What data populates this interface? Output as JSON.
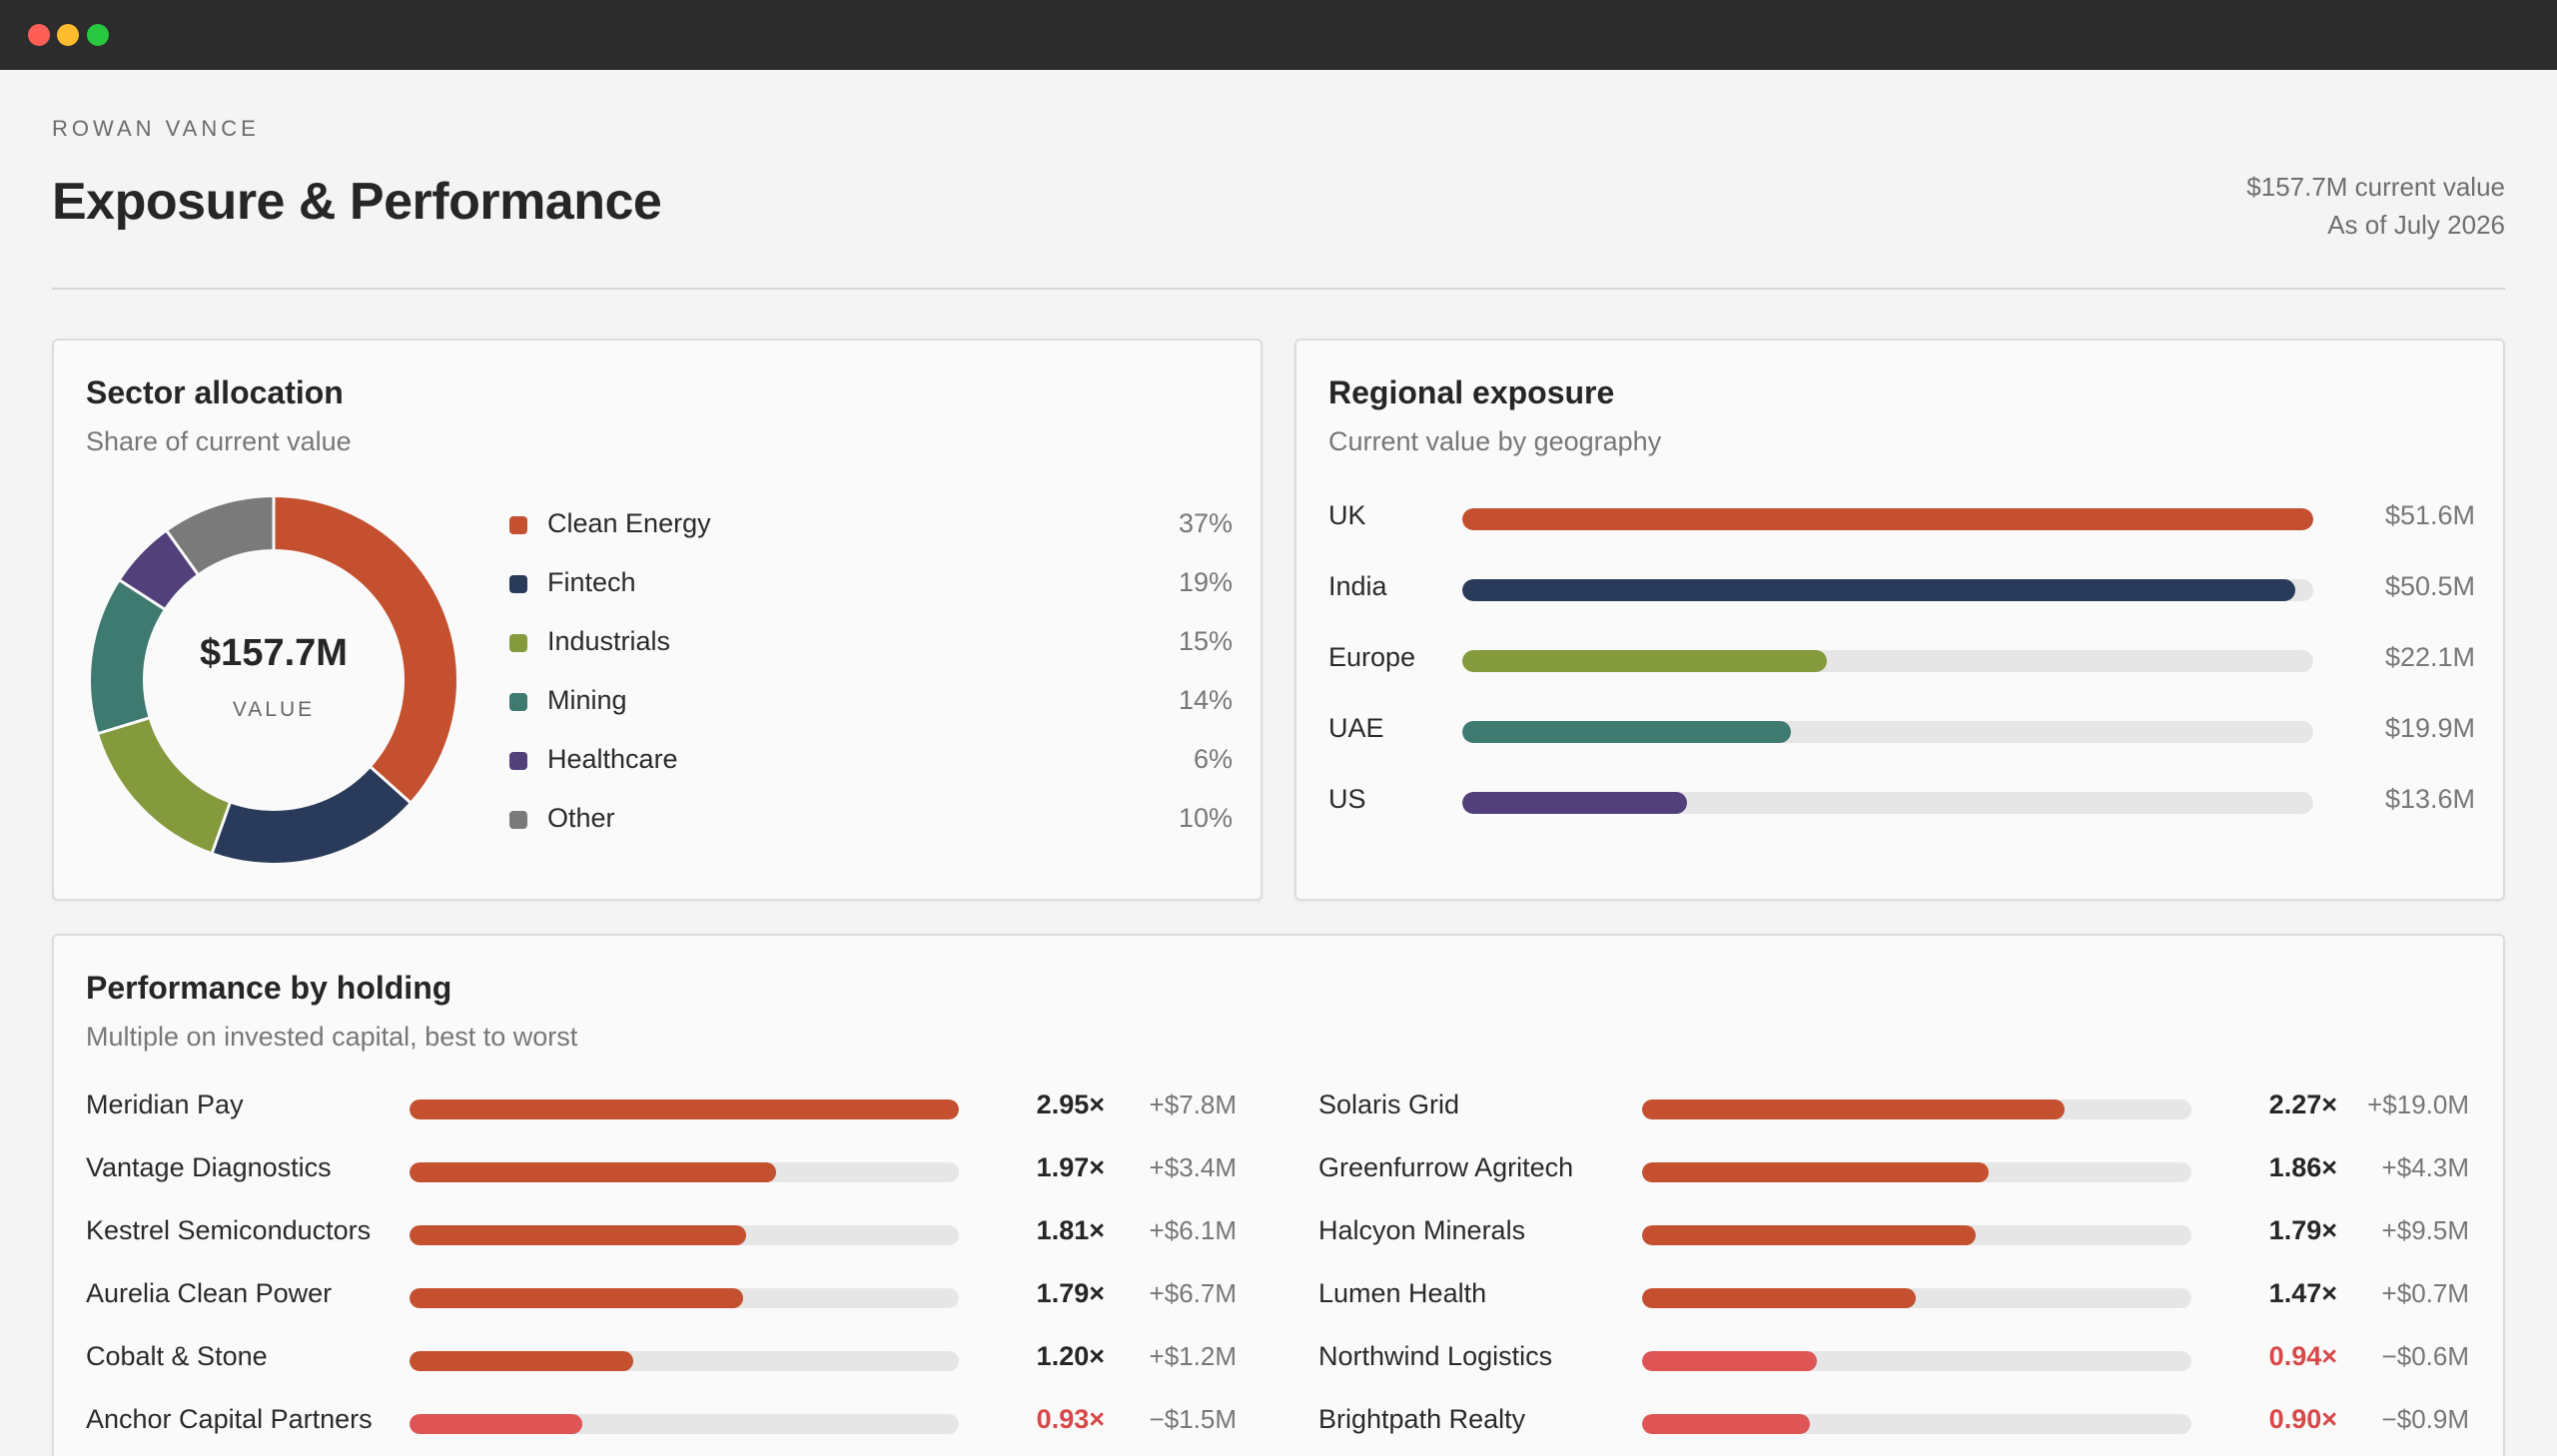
{
  "window": {
    "controls": [
      "close",
      "minimize",
      "zoom"
    ]
  },
  "header": {
    "owner": "ROWAN VANCE",
    "title": "Exposure & Performance",
    "current_value": "$157.7M current value",
    "as_of": "As of July 2026"
  },
  "sector": {
    "title": "Sector allocation",
    "subtitle": "Share of current value",
    "center_value": "$157.7M",
    "center_label": "VALUE",
    "items": [
      {
        "name": "Clean Energy",
        "pct_label": "37%",
        "pct": 37,
        "color": "#c4502f"
      },
      {
        "name": "Fintech",
        "pct_label": "19%",
        "pct": 19,
        "color": "#293a5a"
      },
      {
        "name": "Industrials",
        "pct_label": "15%",
        "pct": 15,
        "color": "#849a3c"
      },
      {
        "name": "Mining",
        "pct_label": "14%",
        "pct": 14,
        "color": "#3e7a70"
      },
      {
        "name": "Healthcare",
        "pct_label": "6%",
        "pct": 6,
        "color": "#52407a"
      },
      {
        "name": "Other",
        "pct_label": "10%",
        "pct": 10,
        "color": "#7a7a7a"
      }
    ]
  },
  "region": {
    "title": "Regional exposure",
    "subtitle": "Current value by geography",
    "max_value": 51.6,
    "items": [
      {
        "name": "UK",
        "value": 51.6,
        "value_label": "$51.6M",
        "color": "#c4502f"
      },
      {
        "name": "India",
        "value": 50.5,
        "value_label": "$50.5M",
        "color": "#293a5a"
      },
      {
        "name": "Europe",
        "value": 22.1,
        "value_label": "$22.1M",
        "color": "#849a3c"
      },
      {
        "name": "UAE",
        "value": 19.9,
        "value_label": "$19.9M",
        "color": "#3e7a70"
      },
      {
        "name": "US",
        "value": 13.6,
        "value_label": "$13.6M",
        "color": "#52407a"
      }
    ]
  },
  "performance": {
    "title": "Performance by holding",
    "subtitle": "Multiple on invested capital, best to worst",
    "max_multiple": 2.95,
    "positive_color": "#c4502f",
    "negative_color": "#df5555",
    "left": [
      {
        "name": "Meridian Pay",
        "multiple": 2.95,
        "multiple_label": "2.95×",
        "gain": "+$7.8M"
      },
      {
        "name": "Vantage Diagnostics",
        "multiple": 1.97,
        "multiple_label": "1.97×",
        "gain": "+$3.4M"
      },
      {
        "name": "Kestrel Semiconductors",
        "multiple": 1.81,
        "multiple_label": "1.81×",
        "gain": "+$6.1M"
      },
      {
        "name": "Aurelia Clean Power",
        "multiple": 1.79,
        "multiple_label": "1.79×",
        "gain": "+$6.7M"
      },
      {
        "name": "Cobalt & Stone",
        "multiple": 1.2,
        "multiple_label": "1.20×",
        "gain": "+$1.2M"
      },
      {
        "name": "Anchor Capital Partners",
        "multiple": 0.93,
        "multiple_label": "0.93×",
        "gain": "−$1.5M"
      }
    ],
    "right": [
      {
        "name": "Solaris Grid",
        "multiple": 2.27,
        "multiple_label": "2.27×",
        "gain": "+$19.0M"
      },
      {
        "name": "Greenfurrow Agritech",
        "multiple": 1.86,
        "multiple_label": "1.86×",
        "gain": "+$4.3M"
      },
      {
        "name": "Halcyon Minerals",
        "multiple": 1.79,
        "multiple_label": "1.79×",
        "gain": "+$9.5M"
      },
      {
        "name": "Lumen Health",
        "multiple": 1.47,
        "multiple_label": "1.47×",
        "gain": "+$0.7M"
      },
      {
        "name": "Northwind Logistics",
        "multiple": 0.94,
        "multiple_label": "0.94×",
        "gain": "−$0.6M"
      },
      {
        "name": "Brightpath Realty",
        "multiple": 0.9,
        "multiple_label": "0.90×",
        "gain": "−$0.9M"
      }
    ]
  }
}
